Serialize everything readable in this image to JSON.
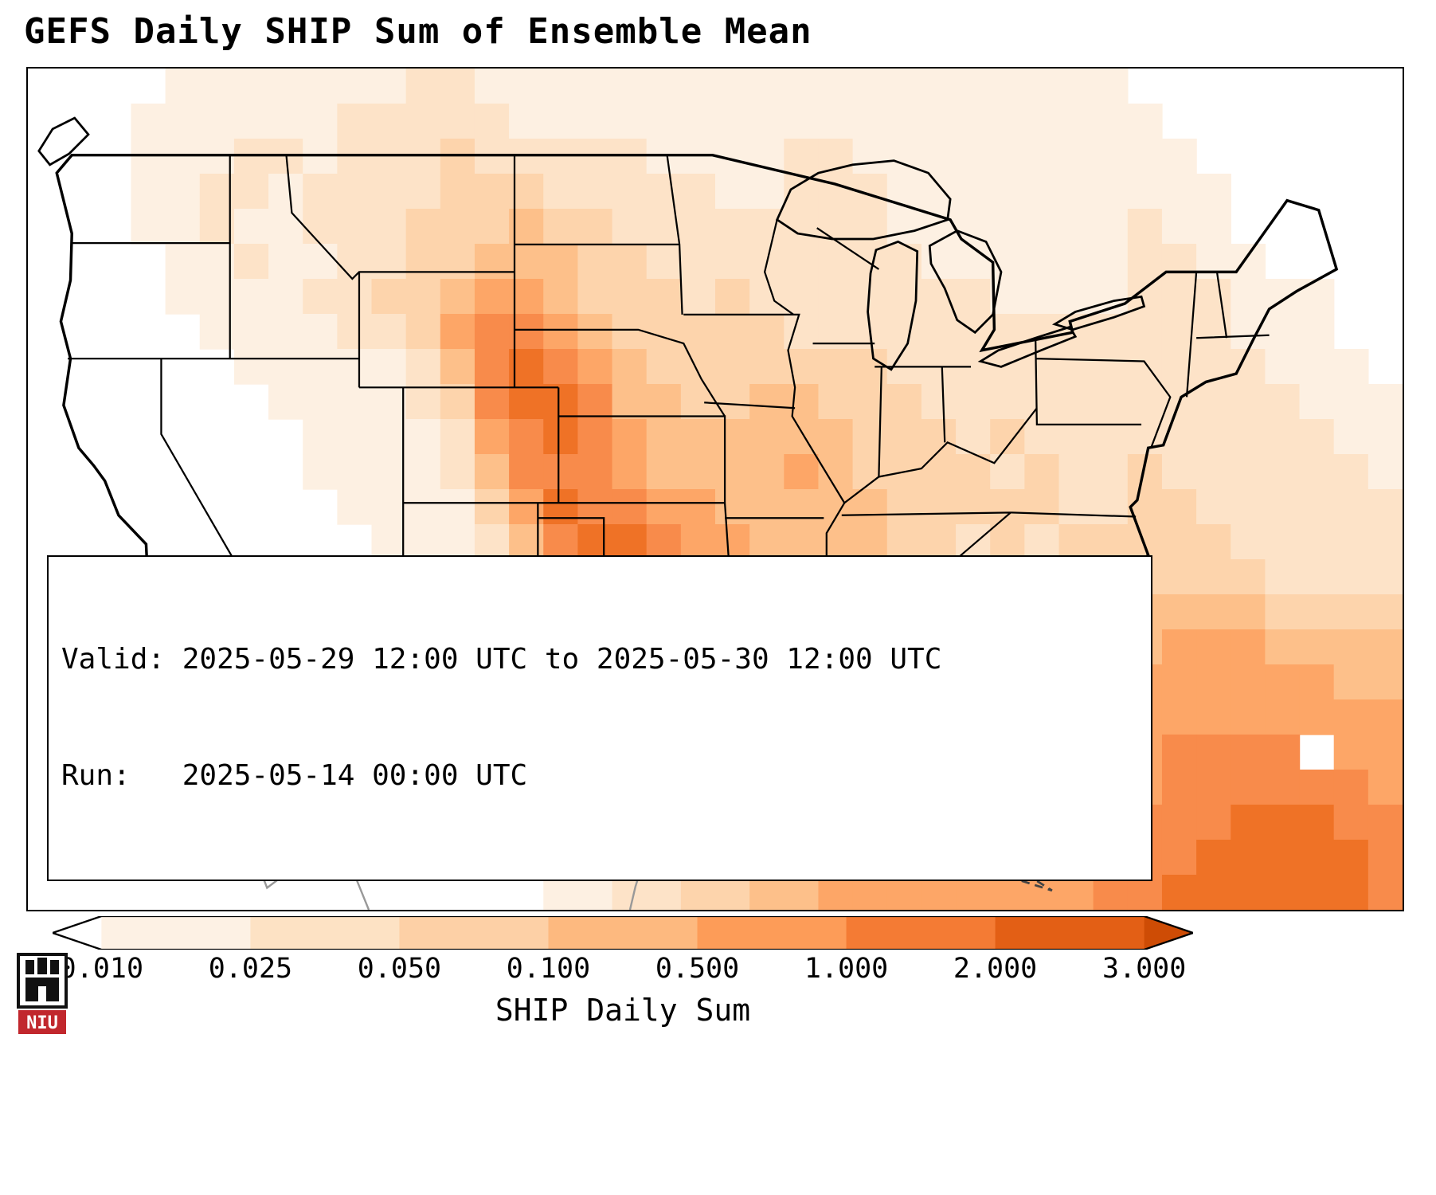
{
  "title": "GEFS Daily SHIP Sum of Ensemble Mean",
  "info_box": {
    "line1": "Valid: 2025-05-29 12:00 UTC to 2025-05-30 12:00 UTC",
    "line2": "Run:   2025-05-14 00:00 UTC"
  },
  "colorbar": {
    "label": "SHIP Daily Sum",
    "ticks": [
      "0.010",
      "0.025",
      "0.050",
      "0.100",
      "0.500",
      "1.000",
      "2.000",
      "3.000"
    ],
    "segment_colors": [
      "#fdf1e4",
      "#fde2c4",
      "#fdd0a6",
      "#fdb97f",
      "#fd9c58",
      "#f47b34",
      "#e35f15"
    ],
    "arrow_left_color": "#ffffff",
    "arrow_right_color": "#ce4c05",
    "outline_color": "#000000"
  },
  "map": {
    "palette": [
      "#ffffff",
      "#fdf0e2",
      "#fde3c8",
      "#fdd4ac",
      "#fdc08a",
      "#fda667",
      "#f88b4b",
      "#ef7226",
      "#e25a10"
    ],
    "grid": [
      "0000111111122111111111111111111100000000",
      "0001111112222211111111111111111110000000",
      "0001112212223222221111221111111111000000",
      "0001122122223332222211222111111111100000",
      "0001121122233343322222222111111121100000",
      "0000112112233444332222222211111122110000",
      "0000111122334554333232222222111122211100",
      "0000011112235665433333222222222222211100",
      "0000001111124676543333333222222222221110",
      "0000000111123677644334433322222222222111",
      "0000000011112567654444443332322222222211",
      "0000000011112466654444543333232232222221",
      "0000000001111357665544444333332233222222",
      "0000000000111246776554444332323333322222",
      "0000000000111235666555444433233333332222",
      "0000000000011234555555544443333344443333",
      "0000000000001134455555544444334445554444",
      "0000012100001123445555554444444455555544",
      "0000023100000122344555555544444555555555",
      "0000012000000112344555555444455556666 55",
      "0000000000000012334445555554445556666665",
      "0000000000000012233444555555445566677766",
      "0000000000000011223344455555545566777776",
      "0000000000000001122334455555555667777776"
    ]
  },
  "logo": {
    "text": "NIU"
  }
}
